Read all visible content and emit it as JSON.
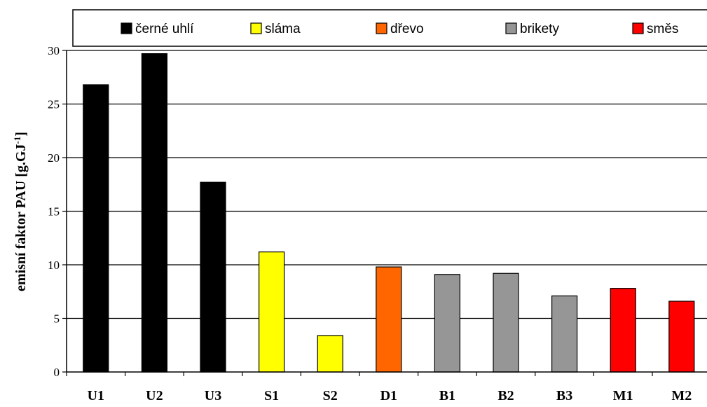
{
  "chart_data": {
    "type": "bar",
    "categories": [
      "U1",
      "U2",
      "U3",
      "S1",
      "S2",
      "D1",
      "B1",
      "B2",
      "B3",
      "M1",
      "M2"
    ],
    "values": [
      26.8,
      29.7,
      17.7,
      11.2,
      3.4,
      9.8,
      9.1,
      9.2,
      7.1,
      7.8,
      6.6
    ],
    "bar_groups": [
      "uhli",
      "uhli",
      "uhli",
      "slama",
      "slama",
      "drevo",
      "brikety",
      "brikety",
      "brikety",
      "smes",
      "smes"
    ],
    "legend": [
      {
        "key": "uhli",
        "label": "černé uhlí",
        "color": "#000000"
      },
      {
        "key": "slama",
        "label": "sláma",
        "color": "#ffff00"
      },
      {
        "key": "drevo",
        "label": "dřevo",
        "color": "#ff6600"
      },
      {
        "key": "brikety",
        "label": "brikety",
        "color": "#969696"
      },
      {
        "key": "smes",
        "label": "směs",
        "color": "#ff0000"
      }
    ],
    "ylabel_main": "emisní faktor PAU [g.GJ",
    "ylabel_sup": "-1",
    "ylabel_end": "]",
    "ylim": [
      0,
      30
    ],
    "yticks": [
      0,
      5,
      10,
      15,
      20,
      25,
      30
    ],
    "grid": true,
    "legend_position": "top"
  }
}
